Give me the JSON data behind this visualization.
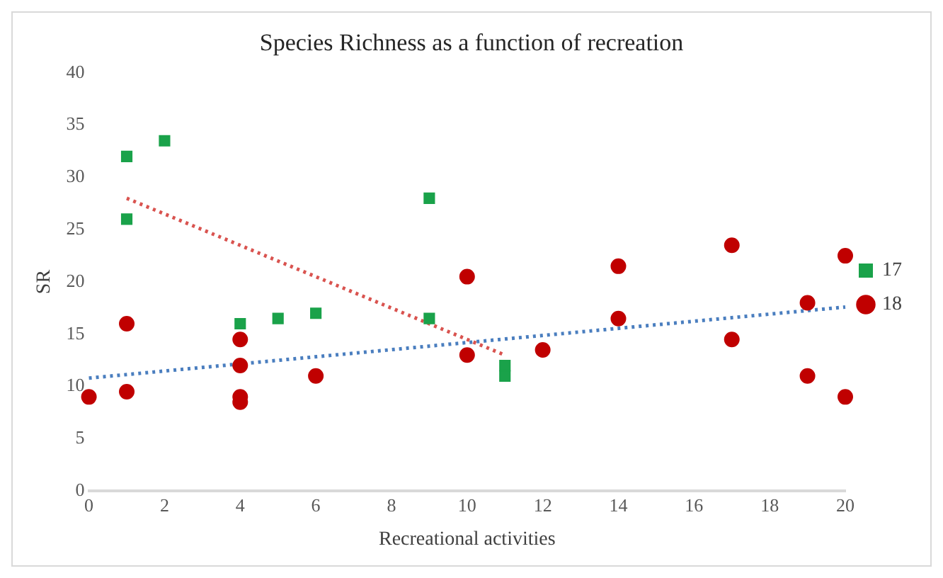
{
  "chart_data": {
    "type": "scatter",
    "title": "Species Richness as a function of recreation",
    "xlabel": "Recreational activities",
    "ylabel": "SR",
    "xlim": [
      0,
      20
    ],
    "xticks": [
      0,
      2,
      4,
      6,
      8,
      10,
      12,
      14,
      16,
      18,
      20
    ],
    "ylim": [
      0,
      40
    ],
    "yticks": [
      0,
      5,
      10,
      15,
      20,
      25,
      30,
      35,
      40
    ],
    "grid": false,
    "legend": "right",
    "series": [
      {
        "name": "17",
        "color": "#1aa24a",
        "marker": "square",
        "x": [
          1,
          1,
          2,
          4,
          5,
          6,
          9,
          9,
          11,
          11
        ],
        "values": [
          32,
          26,
          33.5,
          16,
          16.5,
          17,
          28,
          16.5,
          12,
          11
        ]
      },
      {
        "name": "18",
        "color": "#c00000",
        "marker": "circle",
        "x": [
          0,
          1,
          1,
          4,
          4,
          4,
          4,
          6,
          10,
          10,
          12,
          14,
          14,
          17,
          17,
          19,
          19,
          20,
          20
        ],
        "values": [
          9,
          16,
          9.5,
          14.5,
          12,
          8.5,
          9,
          11,
          20.5,
          13,
          13.5,
          21.5,
          16.5,
          23.5,
          14.5,
          18,
          11,
          22.5,
          9
        ]
      },
      {
        "type": "line",
        "color": "#d9534f",
        "line_style": "dotted",
        "marker": "none",
        "x": [
          1,
          11
        ],
        "values": [
          28,
          13
        ]
      },
      {
        "type": "line",
        "color": "#4a7ebf",
        "line_style": "dotted",
        "marker": "none",
        "x": [
          0,
          20
        ],
        "values": [
          10.8,
          17.6
        ]
      }
    ]
  }
}
